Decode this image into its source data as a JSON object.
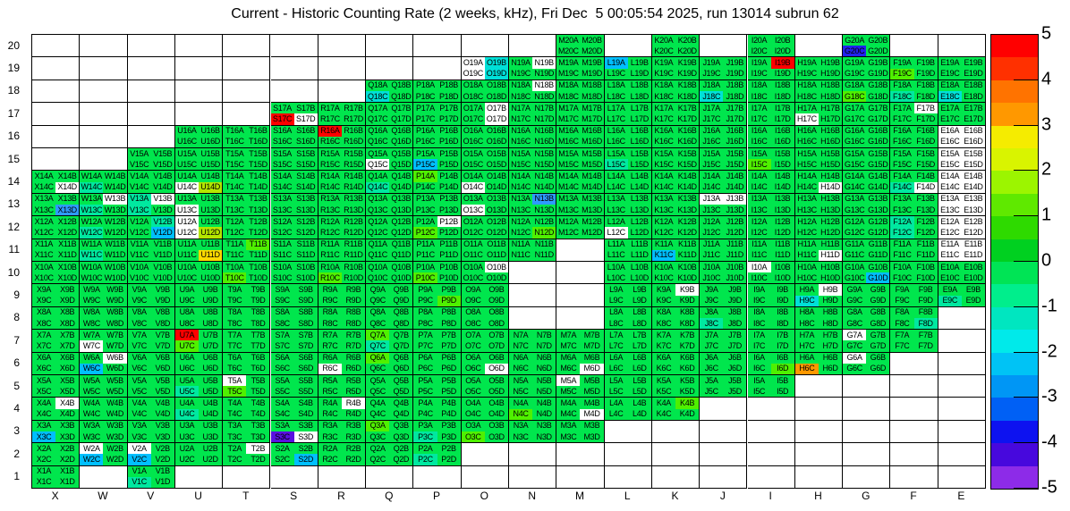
{
  "chart_data": {
    "type": "heatmap",
    "title": "Current - Historic Counting Rate (2 weeks, kHz), Fri Dec  5 00:05:54 2025, run 13014 subrun 62",
    "columns": [
      "X",
      "W",
      "V",
      "U",
      "T",
      "S",
      "R",
      "Q",
      "P",
      "O",
      "N",
      "M",
      "L",
      "K",
      "J",
      "I",
      "H",
      "G",
      "F",
      "E"
    ],
    "rows": [
      20,
      19,
      18,
      17,
      16,
      15,
      14,
      13,
      12,
      11,
      10,
      9,
      8,
      7,
      6,
      5,
      4,
      3,
      2,
      1
    ],
    "subcell_letters": [
      "A",
      "B",
      "C",
      "D"
    ],
    "value_range": [
      -5,
      5
    ],
    "grid_on": true,
    "legend_position": "right",
    "colorbar_ticks": [
      "5",
      "4",
      "3",
      "2",
      "1",
      "0",
      "-1",
      "-2",
      "-3",
      "-4",
      "-5"
    ],
    "colorbar_bands": [
      "#ff0000",
      "#ff3000",
      "#ff7300",
      "#ff9800",
      "#f5ec00",
      "#d9f400",
      "#9cf500",
      "#5fe900",
      "#2eda00",
      "#00d020",
      "#00e455",
      "#00ee8c",
      "#00e6c0",
      "#00eaea",
      "#00c3f5",
      "#0096f5",
      "#0060f5",
      "#0d12f0",
      "#4708dd",
      "#8d2be8"
    ],
    "palette": {
      "green": "#00e64d",
      "green2": "#4ff000",
      "yellowgreen": "#b4e600",
      "yellow": "#ffd900",
      "orange": "#ff9800",
      "red": "#ff0000",
      "teal": "#00e8a0",
      "cyan": "#00e0d8",
      "ltblue": "#00bfff",
      "blue": "#2e9bff",
      "dkblue": "#2222ee",
      "violet": "#5a10e0",
      "white": "#ffffff"
    },
    "palette_values": {
      "green": 0.3,
      "green2": 1.2,
      "yellowgreen": 2.2,
      "yellow": 2.8,
      "orange": 3.3,
      "red": 5.0,
      "teal": -1.2,
      "cyan": -1.7,
      "ltblue": -2.3,
      "blue": -2.8,
      "dkblue": -3.8,
      "violet": -4.5,
      "white": null
    },
    "default_color": "green",
    "present_columns_by_row": {
      "20": [
        "M",
        "K",
        "I",
        "G"
      ],
      "19": [
        "O",
        "N",
        "M",
        "L",
        "K",
        "J",
        "I",
        "H",
        "G",
        "F",
        "E"
      ],
      "18": [
        "Q",
        "P",
        "O",
        "N",
        "M",
        "L",
        "K",
        "J",
        "I",
        "H",
        "G",
        "F",
        "E"
      ],
      "17": [
        "S",
        "R",
        "Q",
        "P",
        "O",
        "N",
        "M",
        "L",
        "K",
        "J",
        "I",
        "H",
        "G",
        "F",
        "E"
      ],
      "16": [
        "U",
        "T",
        "S",
        "R",
        "Q",
        "P",
        "O",
        "N",
        "M",
        "L",
        "K",
        "J",
        "I",
        "H",
        "G",
        "F",
        "E"
      ],
      "15": [
        "V",
        "U",
        "T",
        "S",
        "R",
        "Q",
        "P",
        "O",
        "N",
        "M",
        "L",
        "K",
        "J",
        "I",
        "H",
        "G",
        "F",
        "E"
      ],
      "14": [
        "X",
        "W",
        "V",
        "U",
        "T",
        "S",
        "R",
        "Q",
        "P",
        "O",
        "N",
        "M",
        "L",
        "K",
        "J",
        "I",
        "H",
        "G",
        "F",
        "E"
      ],
      "13": [
        "X",
        "W",
        "V",
        "U",
        "T",
        "S",
        "R",
        "Q",
        "P",
        "O",
        "N",
        "M",
        "L",
        "K",
        "J",
        "I",
        "H",
        "G",
        "F",
        "E"
      ],
      "12": [
        "X",
        "W",
        "V",
        "U",
        "T",
        "S",
        "R",
        "Q",
        "P",
        "O",
        "N",
        "M",
        "L",
        "K",
        "J",
        "I",
        "H",
        "G",
        "F",
        "E"
      ],
      "11": [
        "X",
        "W",
        "V",
        "U",
        "T",
        "S",
        "R",
        "Q",
        "P",
        "O",
        "N",
        "L",
        "K",
        "J",
        "I",
        "H",
        "G",
        "F",
        "E"
      ],
      "10": [
        "X",
        "W",
        "V",
        "U",
        "T",
        "S",
        "R",
        "Q",
        "P",
        "O",
        "L",
        "K",
        "J",
        "I",
        "H",
        "G",
        "F",
        "E"
      ],
      "9": [
        "X",
        "W",
        "V",
        "U",
        "T",
        "S",
        "R",
        "Q",
        "P",
        "O",
        "L",
        "K",
        "J",
        "I",
        "H",
        "G",
        "F",
        "E"
      ],
      "8": [
        "X",
        "W",
        "V",
        "U",
        "T",
        "S",
        "R",
        "Q",
        "P",
        "O",
        "L",
        "K",
        "J",
        "I",
        "H",
        "G",
        "F"
      ],
      "7": [
        "X",
        "W",
        "V",
        "U",
        "T",
        "S",
        "R",
        "Q",
        "P",
        "O",
        "N",
        "M",
        "L",
        "K",
        "J",
        "I",
        "H",
        "G",
        "F"
      ],
      "6": [
        "X",
        "W",
        "V",
        "U",
        "T",
        "S",
        "R",
        "Q",
        "P",
        "O",
        "N",
        "M",
        "L",
        "K",
        "J",
        "I",
        "H",
        "G"
      ],
      "5": [
        "X",
        "W",
        "V",
        "U",
        "T",
        "S",
        "R",
        "Q",
        "P",
        "O",
        "N",
        "M",
        "L",
        "K",
        "J",
        "I"
      ],
      "4": [
        "X",
        "W",
        "V",
        "U",
        "T",
        "S",
        "R",
        "Q",
        "P",
        "O",
        "N",
        "M",
        "L",
        "K"
      ],
      "3": [
        "X",
        "W",
        "V",
        "U",
        "T",
        "S",
        "R",
        "Q",
        "P",
        "O",
        "N",
        "M"
      ],
      "2": [
        "X",
        "W",
        "V",
        "U",
        "T",
        "S",
        "R",
        "Q",
        "P"
      ],
      "1": [
        "X",
        "V"
      ]
    },
    "anomalous_subcells": {
      "G20C": "dkblue",
      "I19B": "red",
      "L19A": "ltblue",
      "F19C": "green2",
      "O19A": "white",
      "O19B": "cyan",
      "O19C": "white",
      "O19D": "cyan",
      "N19B": "white",
      "Q18C": "cyan",
      "N18B": "white",
      "J18C": "cyan",
      "G18C": "green2",
      "F18C": "teal",
      "E18C": "cyan",
      "S17C": "red",
      "S17D": "white",
      "O17B": "white",
      "O17D": "white",
      "H17C": "white",
      "F17B": "white",
      "R16A": "red",
      "E16A": "white",
      "E16B": "white",
      "E16C": "white",
      "E16D": "white",
      "Q15C": "white",
      "P15C": "ltblue",
      "L15C": "teal",
      "I15C": "green2",
      "E15A": "white",
      "E15B": "white",
      "E15C": "white",
      "E15D": "white",
      "X14D": "white",
      "W14C": "teal",
      "U14C": "white",
      "U14D": "yellowgreen",
      "Q14C": "teal",
      "P14A": "green2",
      "O14C": "white",
      "H14D": "white",
      "F14C": "teal",
      "F14D": "white",
      "E14A": "white",
      "E14B": "white",
      "E14C": "white",
      "E14D": "white",
      "X13D": "blue",
      "W13B": "white",
      "W13C": "teal",
      "V13A": "teal",
      "V13B": "white",
      "V13C": "teal",
      "U13C": "white",
      "O13C": "white",
      "N13B": "blue",
      "J13A": "white",
      "J13B": "white",
      "E13A": "white",
      "E13B": "white",
      "E13C": "white",
      "E13D": "white",
      "W12C": "teal",
      "V12B": "teal",
      "V12D": "ltblue",
      "U12A": "white",
      "U12C": "white",
      "U12D": "yellowgreen",
      "P12B": "white",
      "P12C": "green2",
      "N12D": "green2",
      "L12C": "white",
      "F12A": "teal",
      "F12C": "teal",
      "E12A": "white",
      "E12B": "white",
      "E12C": "white",
      "E12D": "white",
      "W11C": "teal",
      "U11D": "yellow",
      "T11B": "green2",
      "K11C": "ltblue",
      "H11D": "white",
      "E11A": "white",
      "E11B": "white",
      "E11C": "white",
      "E11D": "white",
      "T10C": "green2",
      "R10C": "green2",
      "P10C": "green2",
      "O10B": "white",
      "I10A": "white",
      "G10D": "ltblue",
      "P9D": "green2",
      "K9B": "white",
      "H9B": "white",
      "H9C": "cyan",
      "E9C": "teal",
      "J8C": "teal",
      "F8D": "teal",
      "W7C": "white",
      "U7A": "red",
      "U7C": "green2",
      "Q7A": "green2",
      "Q7C": "teal",
      "G7A": "white",
      "W6B": "white",
      "W6C": "ltblue",
      "R6C": "white",
      "Q6A": "green2",
      "O6D": "white",
      "M6D": "white",
      "I6D": "green2",
      "H6C": "orange",
      "G6A": "white",
      "U5C": "teal",
      "T5A": "white",
      "T5C": "green2",
      "M5A": "white",
      "X4B": "white",
      "U4C": "teal",
      "R4B": "white",
      "N4C": "green2",
      "M4D": "white",
      "K4B": "green2",
      "X3C": "ltblue",
      "S3C": "violet",
      "S3D": "white",
      "Q3A": "green2",
      "P3C": "teal",
      "O3C": "green2",
      "W2A": "white",
      "W2C": "ltblue",
      "V2A": "white",
      "V2C": "ltblue",
      "T2B": "white",
      "S2D": "ltblue",
      "P2C": "teal",
      "V1C": "teal"
    }
  }
}
